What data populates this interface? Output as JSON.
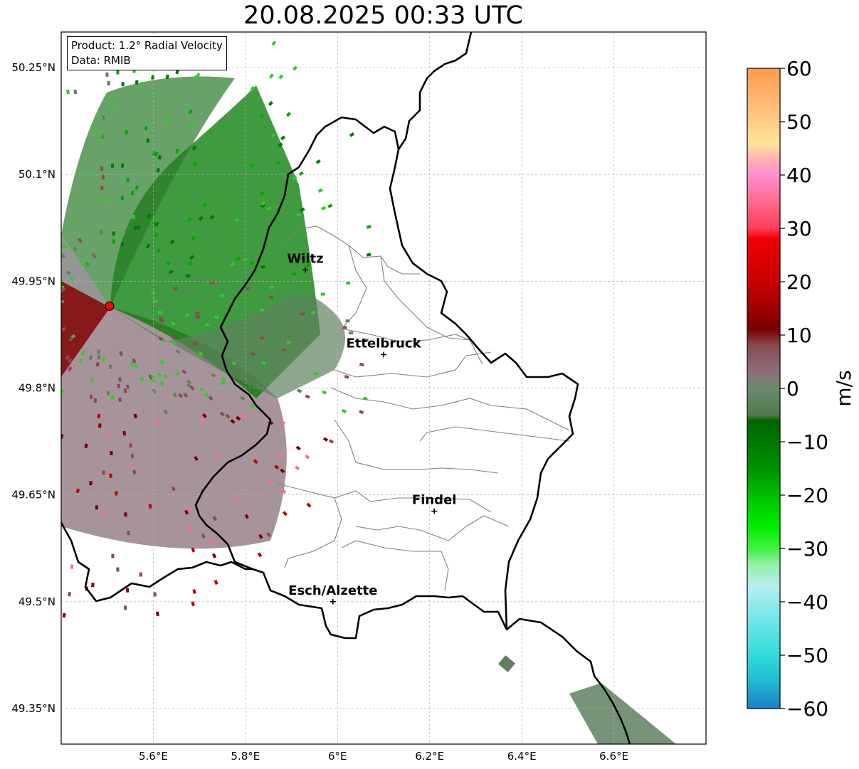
{
  "title": "20.08.2025 00:33 UTC",
  "info": {
    "product": "Product: 1.2° Radial Velocity",
    "data": "Data: RMIB"
  },
  "lat_ticks": [
    "50.25°N",
    "50.1°N",
    "49.95°N",
    "49.8°N",
    "49.65°N",
    "49.5°N",
    "49.35°N"
  ],
  "lon_ticks": [
    "5.6°E",
    "5.8°E",
    "6°E",
    "6.2°E",
    "6.4°E",
    "6.6°E"
  ],
  "cities": [
    {
      "name": "Wiltz",
      "lon": 5.93,
      "lat": 49.966
    },
    {
      "name": "Ettelbruck",
      "lon": 6.1,
      "lat": 49.847
    },
    {
      "name": "Findel",
      "lon": 6.21,
      "lat": 49.627
    },
    {
      "name": "Esch/Alzette",
      "lon": 5.99,
      "lat": 49.5
    }
  ],
  "radar_site": {
    "lon": 5.505,
    "lat": 49.915,
    "color": "#ff0000"
  },
  "extent": {
    "lon_min": 5.4,
    "lon_max": 6.8,
    "lat_min": 49.3,
    "lat_max": 50.3
  },
  "colorbar": {
    "label": "m/s",
    "ticks": [
      "60",
      "50",
      "40",
      "30",
      "20",
      "10",
      "0",
      "−10",
      "−20",
      "−30",
      "−40",
      "−50",
      "−60"
    ],
    "range": [
      -60,
      60
    ],
    "stops": [
      {
        "v": 60,
        "c": "#ff9a4a"
      },
      {
        "v": 55,
        "c": "#ffb36b"
      },
      {
        "v": 50,
        "c": "#ffcc88"
      },
      {
        "v": 46,
        "c": "#ffe49a"
      },
      {
        "v": 43,
        "c": "#ffb3b3"
      },
      {
        "v": 40,
        "c": "#ff8ecf"
      },
      {
        "v": 35,
        "c": "#ff6b8e"
      },
      {
        "v": 30,
        "c": "#ff3b5a"
      },
      {
        "v": 28,
        "c": "#f00000"
      },
      {
        "v": 20,
        "c": "#c80000"
      },
      {
        "v": 15,
        "c": "#a00000"
      },
      {
        "v": 11,
        "c": "#780000"
      },
      {
        "v": 8,
        "c": "#8a4a52"
      },
      {
        "v": 3,
        "c": "#8a7078"
      },
      {
        "v": 0,
        "c": "#6b8a6b"
      },
      {
        "v": -5,
        "c": "#4f7a4f"
      },
      {
        "v": -6,
        "c": "#006400"
      },
      {
        "v": -15,
        "c": "#009000"
      },
      {
        "v": -22,
        "c": "#00d000"
      },
      {
        "v": -26,
        "c": "#00ee00"
      },
      {
        "v": -30,
        "c": "#40f040"
      },
      {
        "v": -33,
        "c": "#90f0a8"
      },
      {
        "v": -37,
        "c": "#b8eef0"
      },
      {
        "v": -42,
        "c": "#80e8e8"
      },
      {
        "v": -50,
        "c": "#30dcdc"
      },
      {
        "v": -55,
        "c": "#20b8d0"
      },
      {
        "v": -60,
        "c": "#1e80c8"
      }
    ]
  },
  "colors": {
    "border": "#000000",
    "canton": "#808080",
    "grid": "#b0b0b0"
  }
}
